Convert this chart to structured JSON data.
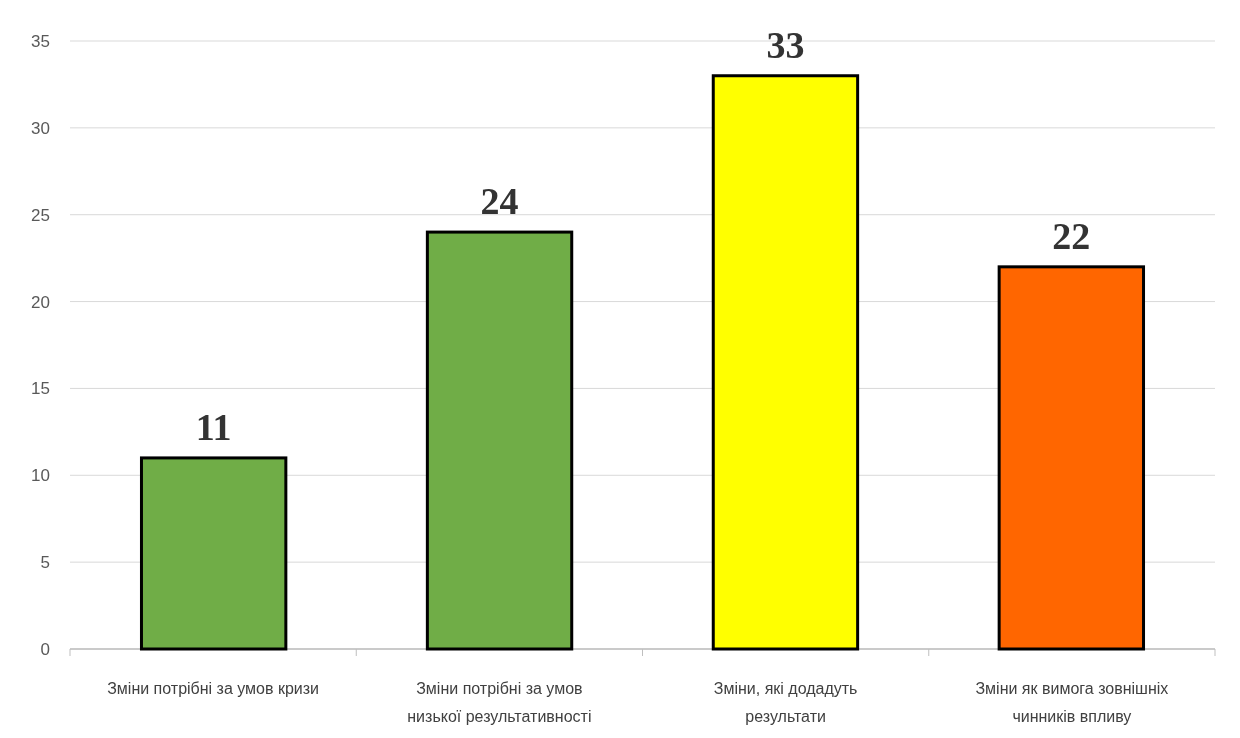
{
  "chart_data": {
    "type": "bar",
    "categories": [
      "Зміни потрібні за умов кризи",
      "Зміни потрібні за умов низької результативності",
      "Зміни, які додадуть результати",
      "Зміни як вимога зовнішніх чинників впливу"
    ],
    "values": [
      11,
      24,
      33,
      22
    ],
    "colors": [
      "#70ad47",
      "#70ad47",
      "#ffff00",
      "#ff6600"
    ],
    "ylim": [
      0,
      35
    ],
    "yticks": [
      0,
      5,
      10,
      15,
      20,
      25,
      30,
      35
    ],
    "grid": "y",
    "data_labels": true
  }
}
